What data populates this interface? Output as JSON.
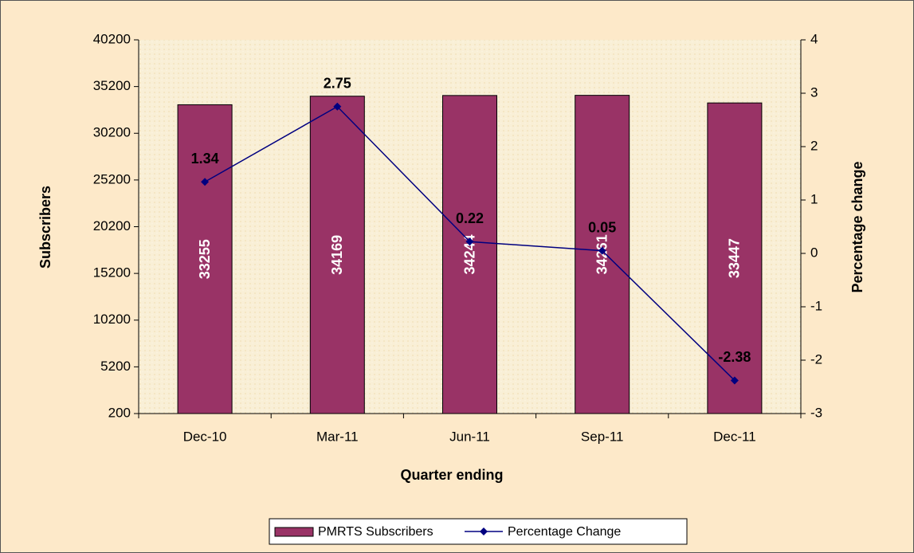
{
  "chart_data": {
    "type": "combo",
    "categories": [
      "Dec-10",
      "Mar-11",
      "Jun-11",
      "Sep-11",
      "Dec-11"
    ],
    "series": [
      {
        "name": "PMRTS Subscribers",
        "type": "bar",
        "color": "#993366",
        "values": [
          33255,
          34169,
          34244,
          34261,
          33447
        ]
      },
      {
        "name": "Percentage Change",
        "type": "line",
        "axis": "y2",
        "color": "#000080",
        "values": [
          1.34,
          2.75,
          0.22,
          0.05,
          -2.38
        ]
      }
    ],
    "ylim": [
      200,
      40200
    ],
    "yticks": [
      200,
      5200,
      10200,
      15200,
      20200,
      25200,
      30200,
      35200,
      40200
    ],
    "y2lim": [
      -3,
      4
    ],
    "y2ticks": [
      -3,
      -2,
      -1,
      0,
      1,
      2,
      3,
      4
    ],
    "xlabel": "Quarter ending",
    "ylabel": "Subscribers",
    "y2label": "Percentage change",
    "legend": "bottom"
  }
}
